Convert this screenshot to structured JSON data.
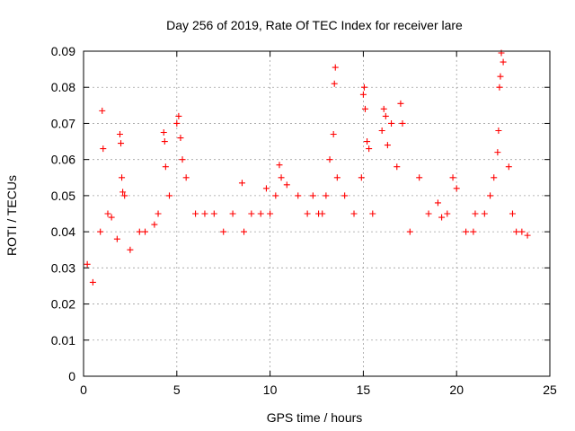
{
  "chart_data": {
    "type": "scatter",
    "title": "Day 256 of 2019, Rate Of TEC Index for receiver lare",
    "xlabel": "GPS time / hours",
    "ylabel": "ROTI / TECUs",
    "xlim": [
      0,
      25
    ],
    "ylim": [
      0,
      0.09
    ],
    "xticks": [
      "0",
      "5",
      "10",
      "15",
      "20",
      "25"
    ],
    "yticks": [
      "0",
      "0.01",
      "0.02",
      "0.03",
      "0.04",
      "0.05",
      "0.06",
      "0.07",
      "0.08",
      "0.09"
    ],
    "grid": true,
    "marker": "+",
    "color": "#ff0000",
    "series": [
      {
        "x": [
          0.2,
          0.5,
          0.9,
          1.0,
          1.05,
          1.3,
          1.5,
          1.8,
          1.95,
          2.0,
          2.05,
          2.1,
          2.2,
          2.5,
          3.0,
          3.3,
          3.8,
          4.0,
          4.3,
          4.35,
          4.4,
          4.6,
          5.0,
          5.1,
          5.2,
          5.3,
          5.5,
          6.0,
          6.5,
          7.0,
          7.5,
          8.0,
          8.5,
          8.6,
          9.0,
          9.5,
          9.8,
          10.0,
          10.3,
          10.5,
          10.6,
          10.9,
          11.5,
          12.0,
          12.3,
          12.6,
          12.8,
          13.0,
          13.2,
          13.4,
          13.45,
          13.5,
          13.6,
          14.0,
          14.5,
          14.9,
          15.0,
          15.05,
          15.1,
          15.2,
          15.3,
          15.5,
          16.0,
          16.1,
          16.2,
          16.3,
          16.5,
          16.8,
          17.0,
          17.1,
          17.5,
          18.0,
          18.5,
          19.0,
          19.2,
          19.5,
          19.8,
          20.0,
          20.5,
          20.9,
          21.0,
          21.5,
          21.8,
          22.0,
          22.2,
          22.25,
          22.3,
          22.35,
          22.4,
          22.5,
          22.8,
          23.0,
          23.2,
          23.5,
          23.8
        ],
        "y": [
          0.031,
          0.026,
          0.04,
          0.0735,
          0.063,
          0.045,
          0.044,
          0.038,
          0.067,
          0.0645,
          0.055,
          0.051,
          0.05,
          0.035,
          0.04,
          0.04,
          0.042,
          0.045,
          0.0675,
          0.065,
          0.058,
          0.05,
          0.07,
          0.072,
          0.066,
          0.06,
          0.055,
          0.045,
          0.045,
          0.045,
          0.04,
          0.045,
          0.0535,
          0.04,
          0.045,
          0.045,
          0.052,
          0.045,
          0.05,
          0.0585,
          0.055,
          0.053,
          0.05,
          0.045,
          0.05,
          0.045,
          0.045,
          0.05,
          0.06,
          0.067,
          0.081,
          0.0855,
          0.055,
          0.05,
          0.045,
          0.055,
          0.078,
          0.08,
          0.074,
          0.065,
          0.063,
          0.045,
          0.068,
          0.074,
          0.072,
          0.064,
          0.07,
          0.058,
          0.0755,
          0.07,
          0.04,
          0.055,
          0.045,
          0.048,
          0.044,
          0.045,
          0.055,
          0.052,
          0.04,
          0.04,
          0.045,
          0.045,
          0.05,
          0.055,
          0.062,
          0.068,
          0.08,
          0.083,
          0.0895,
          0.087,
          0.058,
          0.045,
          0.04,
          0.04,
          0.039
        ]
      }
    ]
  }
}
